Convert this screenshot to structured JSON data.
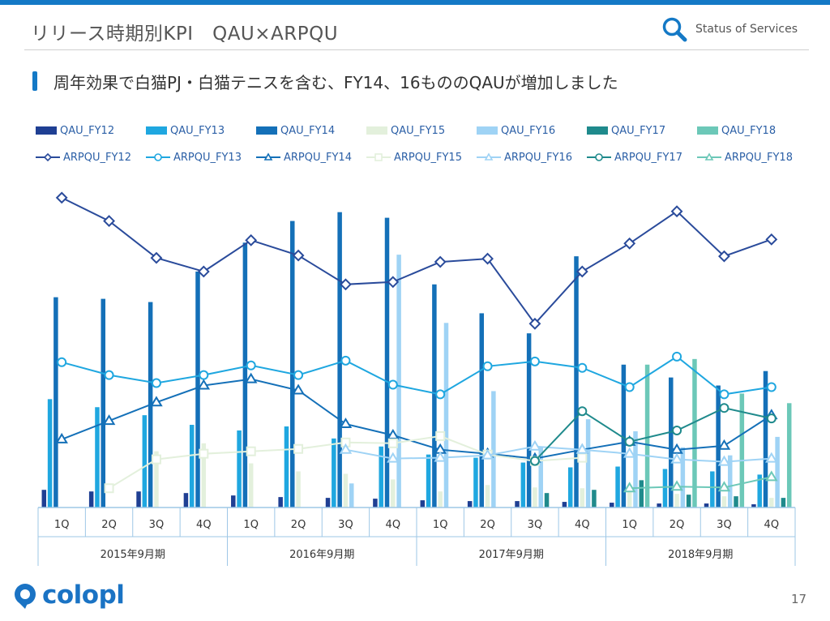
{
  "header": {
    "title": "リリース時期別KPI　QAU×ARPQU",
    "status_label": "Status of Services",
    "subtitle": "周年効果で白猫PJ・白猫テニスを含む、FY14、16もののQAUが増加しました"
  },
  "footer": {
    "logo_text": "colopl",
    "page_number": "17"
  },
  "colors": {
    "accent": "#1479c6",
    "FY12": "#1f3f93",
    "FY13": "#1fa7e0",
    "FY14": "#1470b8",
    "FY15": "#e3f0dc",
    "FY16": "#9fd3f5",
    "FY17": "#1f8a8c",
    "FY18": "#6cc8b8",
    "ARPQU_FY12": "#2a4b9b"
  },
  "chart_data": {
    "type": "bar+line",
    "quarters": [
      "1Q",
      "2Q",
      "3Q",
      "4Q",
      "1Q",
      "2Q",
      "3Q",
      "4Q",
      "1Q",
      "2Q",
      "3Q",
      "4Q",
      "1Q",
      "2Q",
      "3Q",
      "4Q"
    ],
    "years": [
      "2015年9月期",
      "2016年9月期",
      "2017年9月期",
      "2018年9月期"
    ],
    "bar_series": [
      {
        "name": "QAU_FY12",
        "key": "FY12",
        "values": [
          22,
          20,
          20,
          18,
          15,
          13,
          12,
          11,
          9,
          8,
          8,
          7,
          6,
          5,
          5,
          4
        ]
      },
      {
        "name": "QAU_FY13",
        "key": "FY13",
        "values": [
          135,
          125,
          115,
          103,
          96,
          101,
          86,
          76,
          66,
          62,
          56,
          50,
          51,
          48,
          45,
          41
        ]
      },
      {
        "name": "QAU_FY14",
        "key": "FY14",
        "values": [
          262,
          260,
          256,
          294,
          330,
          357,
          368,
          361,
          278,
          242,
          217,
          313,
          178,
          162,
          152,
          170
        ]
      },
      {
        "name": "QAU_FY15",
        "key": "FY15",
        "values": [
          null,
          null,
          70,
          80,
          55,
          45,
          42,
          35,
          20,
          28,
          25,
          24,
          20,
          17,
          14,
          12
        ]
      },
      {
        "name": "QAU_FY16",
        "key": "FY16",
        "values": [
          null,
          null,
          null,
          null,
          null,
          null,
          30,
          315,
          230,
          145,
          75,
          110,
          95,
          75,
          65,
          88
        ]
      },
      {
        "name": "QAU_FY17",
        "key": "FY17",
        "values": [
          null,
          null,
          null,
          null,
          null,
          null,
          null,
          null,
          null,
          null,
          18,
          22,
          34,
          16,
          14,
          12
        ]
      },
      {
        "name": "QAU_FY18",
        "key": "FY18",
        "values": [
          null,
          null,
          null,
          null,
          null,
          null,
          null,
          null,
          null,
          null,
          null,
          null,
          178,
          185,
          142,
          130
        ]
      }
    ],
    "line_series": [
      {
        "name": "ARPQU_FY12",
        "key": "ARPQU_FY12",
        "marker": "diamond",
        "values": [
          386,
          357,
          311,
          294,
          333,
          314,
          278,
          281,
          306,
          310,
          229,
          294,
          329,
          369,
          313,
          334
        ]
      },
      {
        "name": "ARPQU_FY13",
        "key": "FY13",
        "marker": "circle",
        "values": [
          181,
          165,
          155,
          165,
          177,
          165,
          183,
          153,
          141,
          176,
          182,
          174,
          150,
          188,
          141,
          150
        ]
      },
      {
        "name": "ARPQU_FY14",
        "key": "FY14",
        "marker": "triangle",
        "values": [
          85,
          108,
          131,
          152,
          160,
          146,
          104,
          90,
          72,
          67,
          61,
          72,
          82,
          72,
          77,
          115
        ]
      },
      {
        "name": "ARPQU_FY15",
        "key": "FY15",
        "marker": "square",
        "values": [
          null,
          24,
          60,
          67,
          70,
          73,
          81,
          80,
          89,
          66,
          58,
          62,
          null,
          null,
          null,
          null
        ]
      },
      {
        "name": "ARPQU_FY16",
        "key": "FY16",
        "marker": "triangle",
        "values": [
          null,
          null,
          null,
          null,
          null,
          null,
          72,
          61,
          62,
          65,
          76,
          72,
          67,
          60,
          57,
          61
        ]
      },
      {
        "name": "ARPQU_FY17",
        "key": "FY17",
        "marker": "circle",
        "values": [
          null,
          null,
          null,
          null,
          null,
          null,
          null,
          null,
          null,
          null,
          58,
          120,
          82,
          96,
          124,
          111
        ]
      },
      {
        "name": "ARPQU_FY18",
        "key": "FY18",
        "marker": "triangle",
        "values": [
          null,
          null,
          null,
          null,
          null,
          null,
          null,
          null,
          null,
          null,
          null,
          null,
          24,
          26,
          25,
          38
        ]
      }
    ],
    "ylim": [
      0,
      400
    ],
    "xlabel": "",
    "ylabel": "",
    "grid": false,
    "legend": "top"
  }
}
